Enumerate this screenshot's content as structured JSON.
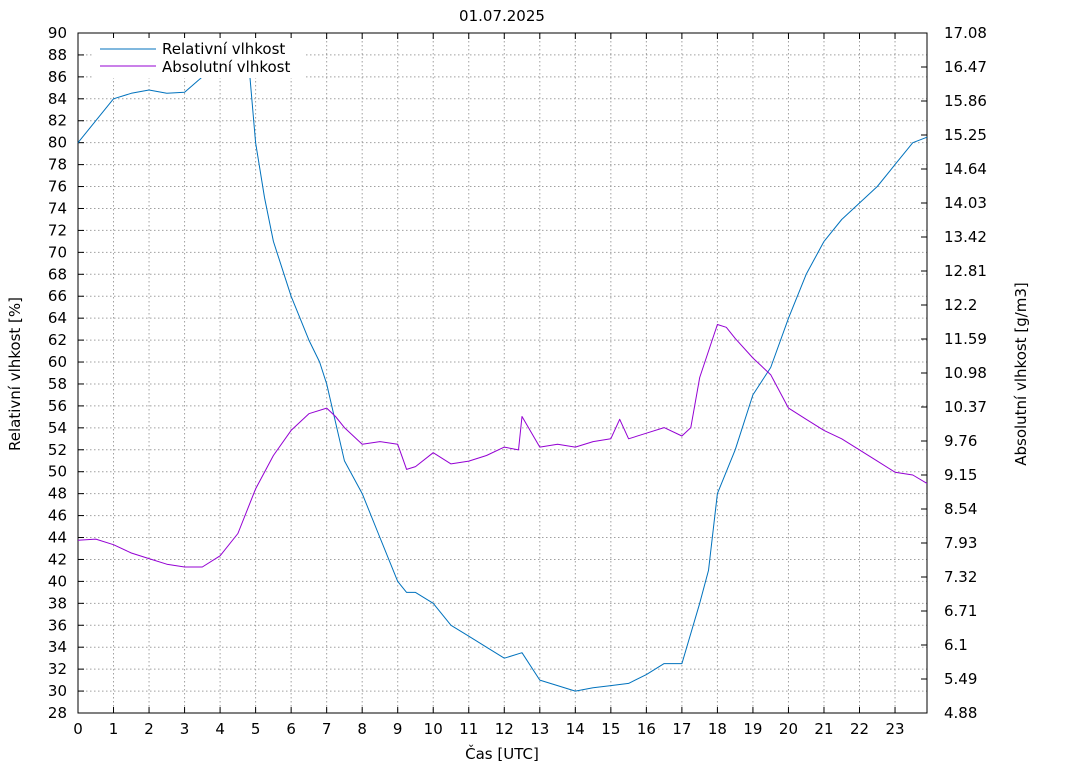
{
  "chart_data": {
    "type": "line",
    "title": "01.07.2025",
    "xlabel": "Čas [UTC]",
    "ylabel": "Relativní vlhkost [%]",
    "y2label": "Absolutní vlhkost [g/m3]",
    "xlim": [
      0,
      23.9
    ],
    "ylim": [
      28,
      90
    ],
    "y2lim": [
      4.88,
      17.08
    ],
    "x_ticks": [
      "0",
      "1",
      "2",
      "3",
      "4",
      "5",
      "6",
      "7",
      "8",
      "9",
      "10",
      "11",
      "12",
      "13",
      "14",
      "15",
      "16",
      "17",
      "18",
      "19",
      "20",
      "21",
      "22",
      "23"
    ],
    "y_ticks": [
      "28",
      "30",
      "32",
      "34",
      "36",
      "38",
      "40",
      "42",
      "44",
      "46",
      "48",
      "50",
      "52",
      "54",
      "56",
      "58",
      "60",
      "62",
      "64",
      "66",
      "68",
      "70",
      "72",
      "74",
      "76",
      "78",
      "80",
      "82",
      "84",
      "86",
      "88",
      "90"
    ],
    "y2_ticks": [
      "4.88",
      "5.49",
      "6.1",
      "6.71",
      "7.32",
      "7.93",
      "8.54",
      "9.15",
      "9.76",
      "10.37",
      "10.98",
      "11.59",
      "12.2",
      "12.81",
      "13.42",
      "14.03",
      "14.64",
      "15.25",
      "15.86",
      "16.47",
      "17.08"
    ],
    "grid": true,
    "legend_position": "top-left",
    "colors": {
      "relative": "#0072bd",
      "absolute": "#9400d3",
      "grid": "#a0a0a0"
    },
    "series": [
      {
        "name": "Relativní vlhkost",
        "axis": "left",
        "color": "#0072bd",
        "x": [
          0,
          0.5,
          1,
          1.5,
          2,
          2.5,
          3,
          3.5,
          4,
          4.5,
          4.8,
          5,
          5.25,
          5.5,
          6,
          6.5,
          6.8,
          7,
          7.5,
          8,
          8.5,
          9,
          9.25,
          9.5,
          10,
          10.5,
          11,
          11.5,
          12,
          12.5,
          13,
          13.5,
          14,
          14.5,
          15,
          15.5,
          16,
          16.5,
          17,
          17.5,
          17.75,
          18,
          18.5,
          19,
          19.5,
          20,
          20.5,
          21,
          21.5,
          22,
          22.5,
          23,
          23.5,
          23.9
        ],
        "y": [
          80,
          82,
          84,
          84.5,
          84.8,
          84.5,
          84.6,
          86,
          87.3,
          88,
          87.5,
          80,
          75,
          71,
          66,
          62,
          60,
          58,
          51,
          48,
          44,
          40,
          39,
          39,
          38,
          36,
          35,
          34,
          33,
          33.5,
          31,
          30.5,
          30,
          30.3,
          30.5,
          30.7,
          31.5,
          32.5,
          32.5,
          38,
          41,
          48,
          52,
          57,
          59.5,
          64,
          68,
          71,
          73,
          74.5,
          76,
          78,
          80,
          80.5
        ]
      },
      {
        "name": "Absolutní vlhkost",
        "axis": "right",
        "color": "#9400d3",
        "x": [
          0,
          0.5,
          1,
          1.5,
          2,
          2.5,
          3,
          3.5,
          4,
          4.5,
          5,
          5.5,
          6,
          6.5,
          7,
          7.25,
          7.5,
          8,
          8.5,
          9,
          9.25,
          9.5,
          10,
          10.5,
          11,
          11.5,
          12,
          12.4,
          12.5,
          13,
          13.5,
          14,
          14.5,
          15,
          15.25,
          15.5,
          16,
          16.5,
          17,
          17.25,
          17.5,
          18,
          18.25,
          18.5,
          19,
          19.5,
          20,
          20.5,
          21,
          21.5,
          22,
          22.5,
          23,
          23.5,
          23.9
        ],
        "y": [
          7.98,
          8.0,
          7.9,
          7.75,
          7.65,
          7.55,
          7.5,
          7.5,
          7.7,
          8.1,
          8.9,
          9.5,
          9.95,
          10.25,
          10.35,
          10.2,
          10.0,
          9.7,
          9.75,
          9.7,
          9.25,
          9.3,
          9.55,
          9.35,
          9.4,
          9.5,
          9.65,
          9.6,
          10.2,
          9.65,
          9.7,
          9.65,
          9.75,
          9.8,
          10.15,
          9.8,
          9.9,
          10.0,
          9.85,
          10.0,
          10.9,
          11.85,
          11.8,
          11.6,
          11.25,
          10.95,
          10.35,
          10.15,
          9.95,
          9.8,
          9.6,
          9.4,
          9.2,
          9.15,
          9.0
        ]
      }
    ]
  }
}
